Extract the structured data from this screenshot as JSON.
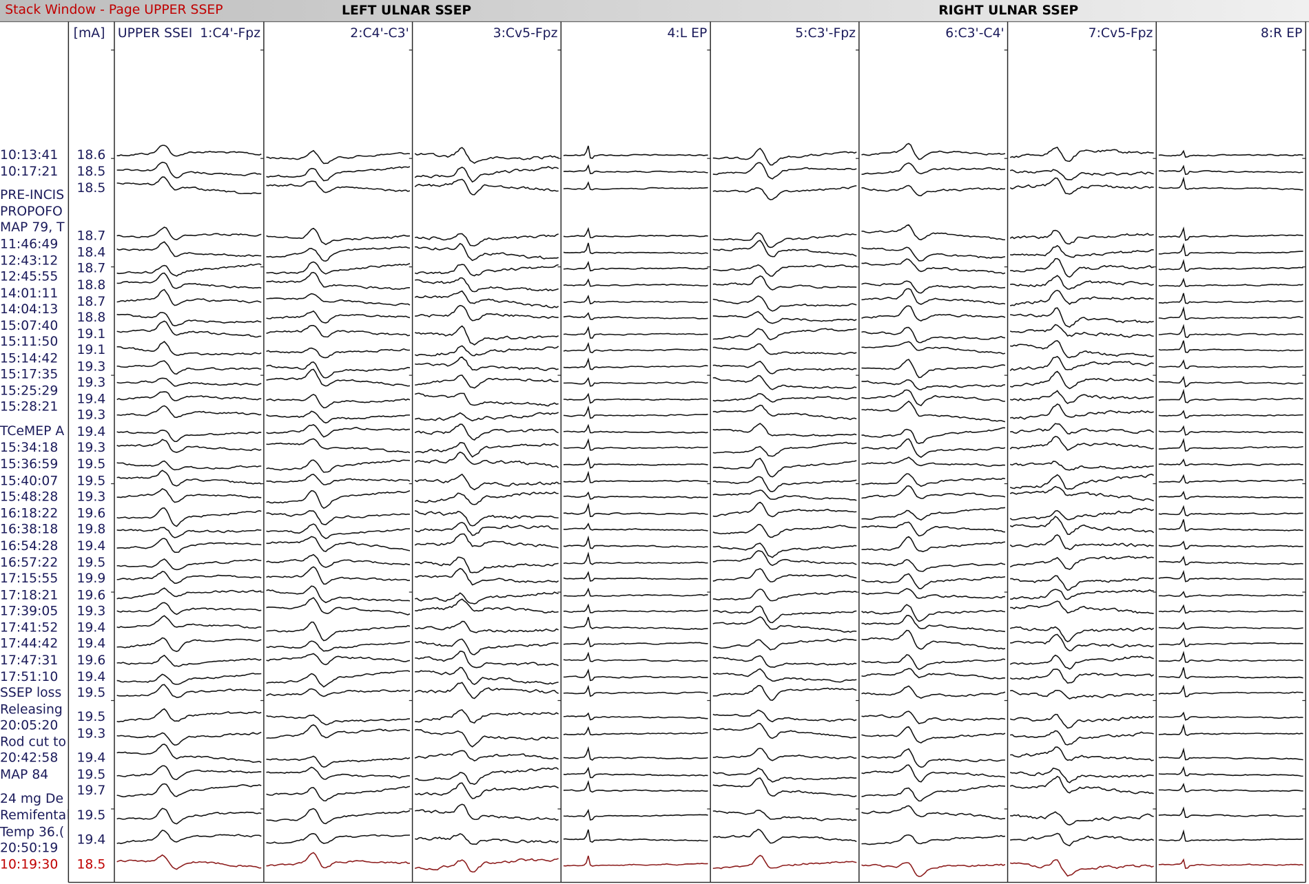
{
  "window_title": "Stack Window - Page UPPER SSEP",
  "groups": [
    "LEFT ULNAR SSEP",
    "RIGHT ULNAR SSEP"
  ],
  "unit_header": "[mA]",
  "page_label": "UPPER SSEI",
  "channels": [
    "1:C4'-Fpz",
    "2:C4'-C3'",
    "3:Cv5-Fpz",
    "4:L EP",
    "5:C3'-Fpz",
    "6:C3'-C4'",
    "7:Cv5-Fpz",
    "8:R EP"
  ],
  "row_labels": [
    "10:13:41",
    "10:17:21",
    "PRE-INCIS",
    "PROPOFO",
    "MAP 79, T",
    "11:46:49",
    "12:43:12",
    "12:45:55",
    "14:01:11",
    "14:04:13",
    "15:07:40",
    "15:11:50",
    "15:14:42",
    "15:17:35",
    "15:25:29",
    "15:28:21",
    "TCeMEP A",
    "15:34:18",
    "15:36:59",
    "15:40:07",
    "15:48:28",
    "16:18:22",
    "16:38:18",
    "16:54:28",
    "16:57:22",
    "17:15:55",
    "17:18:21",
    "17:39:05",
    "17:41:52",
    "17:44:42",
    "17:47:31",
    "17:51:10",
    "SSEP loss",
    "Releasing",
    "20:05:20",
    "Rod cut to",
    "20:42:58",
    "MAP 84",
    "24 mg De",
    "Remifental",
    "Temp 36.(",
    "20:50:19",
    "10:19:30"
  ],
  "intensities": [
    18.6,
    18.5,
    18.5,
    18.7,
    18.4,
    18.7,
    18.8,
    18.7,
    18.8,
    19.1,
    19.1,
    19.3,
    19.3,
    19.4,
    19.3,
    19.4,
    19.3,
    19.5,
    19.5,
    19.3,
    19.6,
    19.8,
    19.4,
    19.5,
    19.9,
    19.6,
    19.3,
    19.4,
    19.4,
    19.6,
    19.4,
    19.5,
    19.5,
    19.3,
    19.4,
    19.5,
    19.7,
    19.5,
    19.4,
    18.5
  ]
}
